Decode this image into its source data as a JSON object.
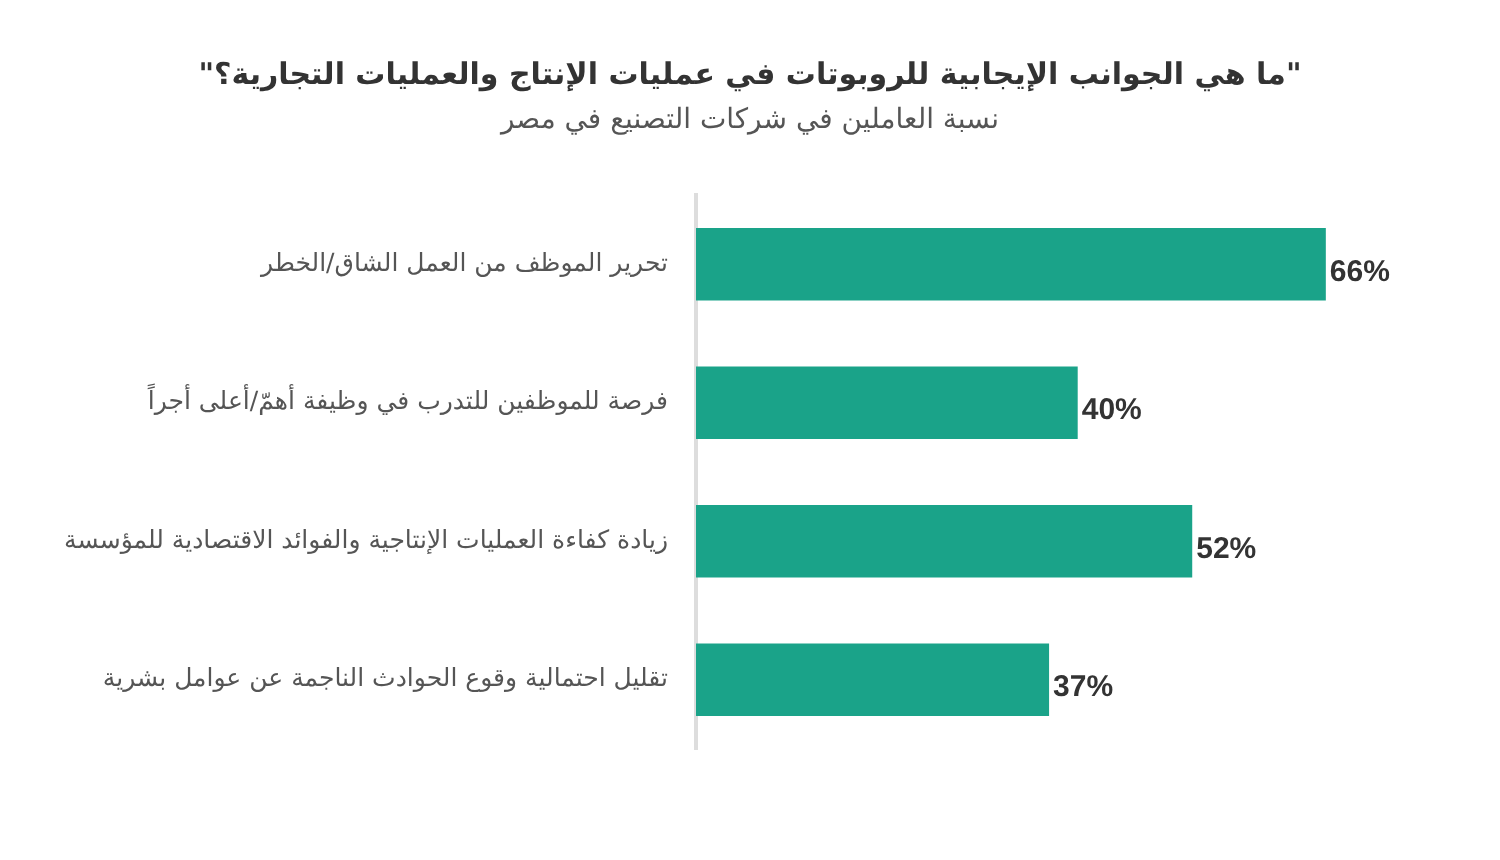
{
  "chart_data": {
    "type": "bar",
    "orientation": "horizontal",
    "title": "\"ما هي الجوانب الإيجابية للروبوتات في عمليات الإنتاج والعمليات التجارية؟\"",
    "subtitle": "نسبة العاملين في شركات التصنيع في مصر",
    "categories": [
      "تحرير الموظف من العمل الشاق/الخطر",
      "فرصة للموظفين للتدرب في وظيفة أهمّ/أعلى أجراً",
      "زيادة كفاءة العمليات الإنتاجية والفوائد الاقتصادية للمؤسسة",
      "تقليل احتمالية وقوع الحوادث الناجمة عن عوامل بشرية"
    ],
    "values": [
      66,
      40,
      52,
      37
    ],
    "value_labels": [
      "66%",
      "40%",
      "52%",
      "37%"
    ],
    "color": "#1aa389",
    "grid": false,
    "legend": false,
    "tick_labels": "y"
  }
}
